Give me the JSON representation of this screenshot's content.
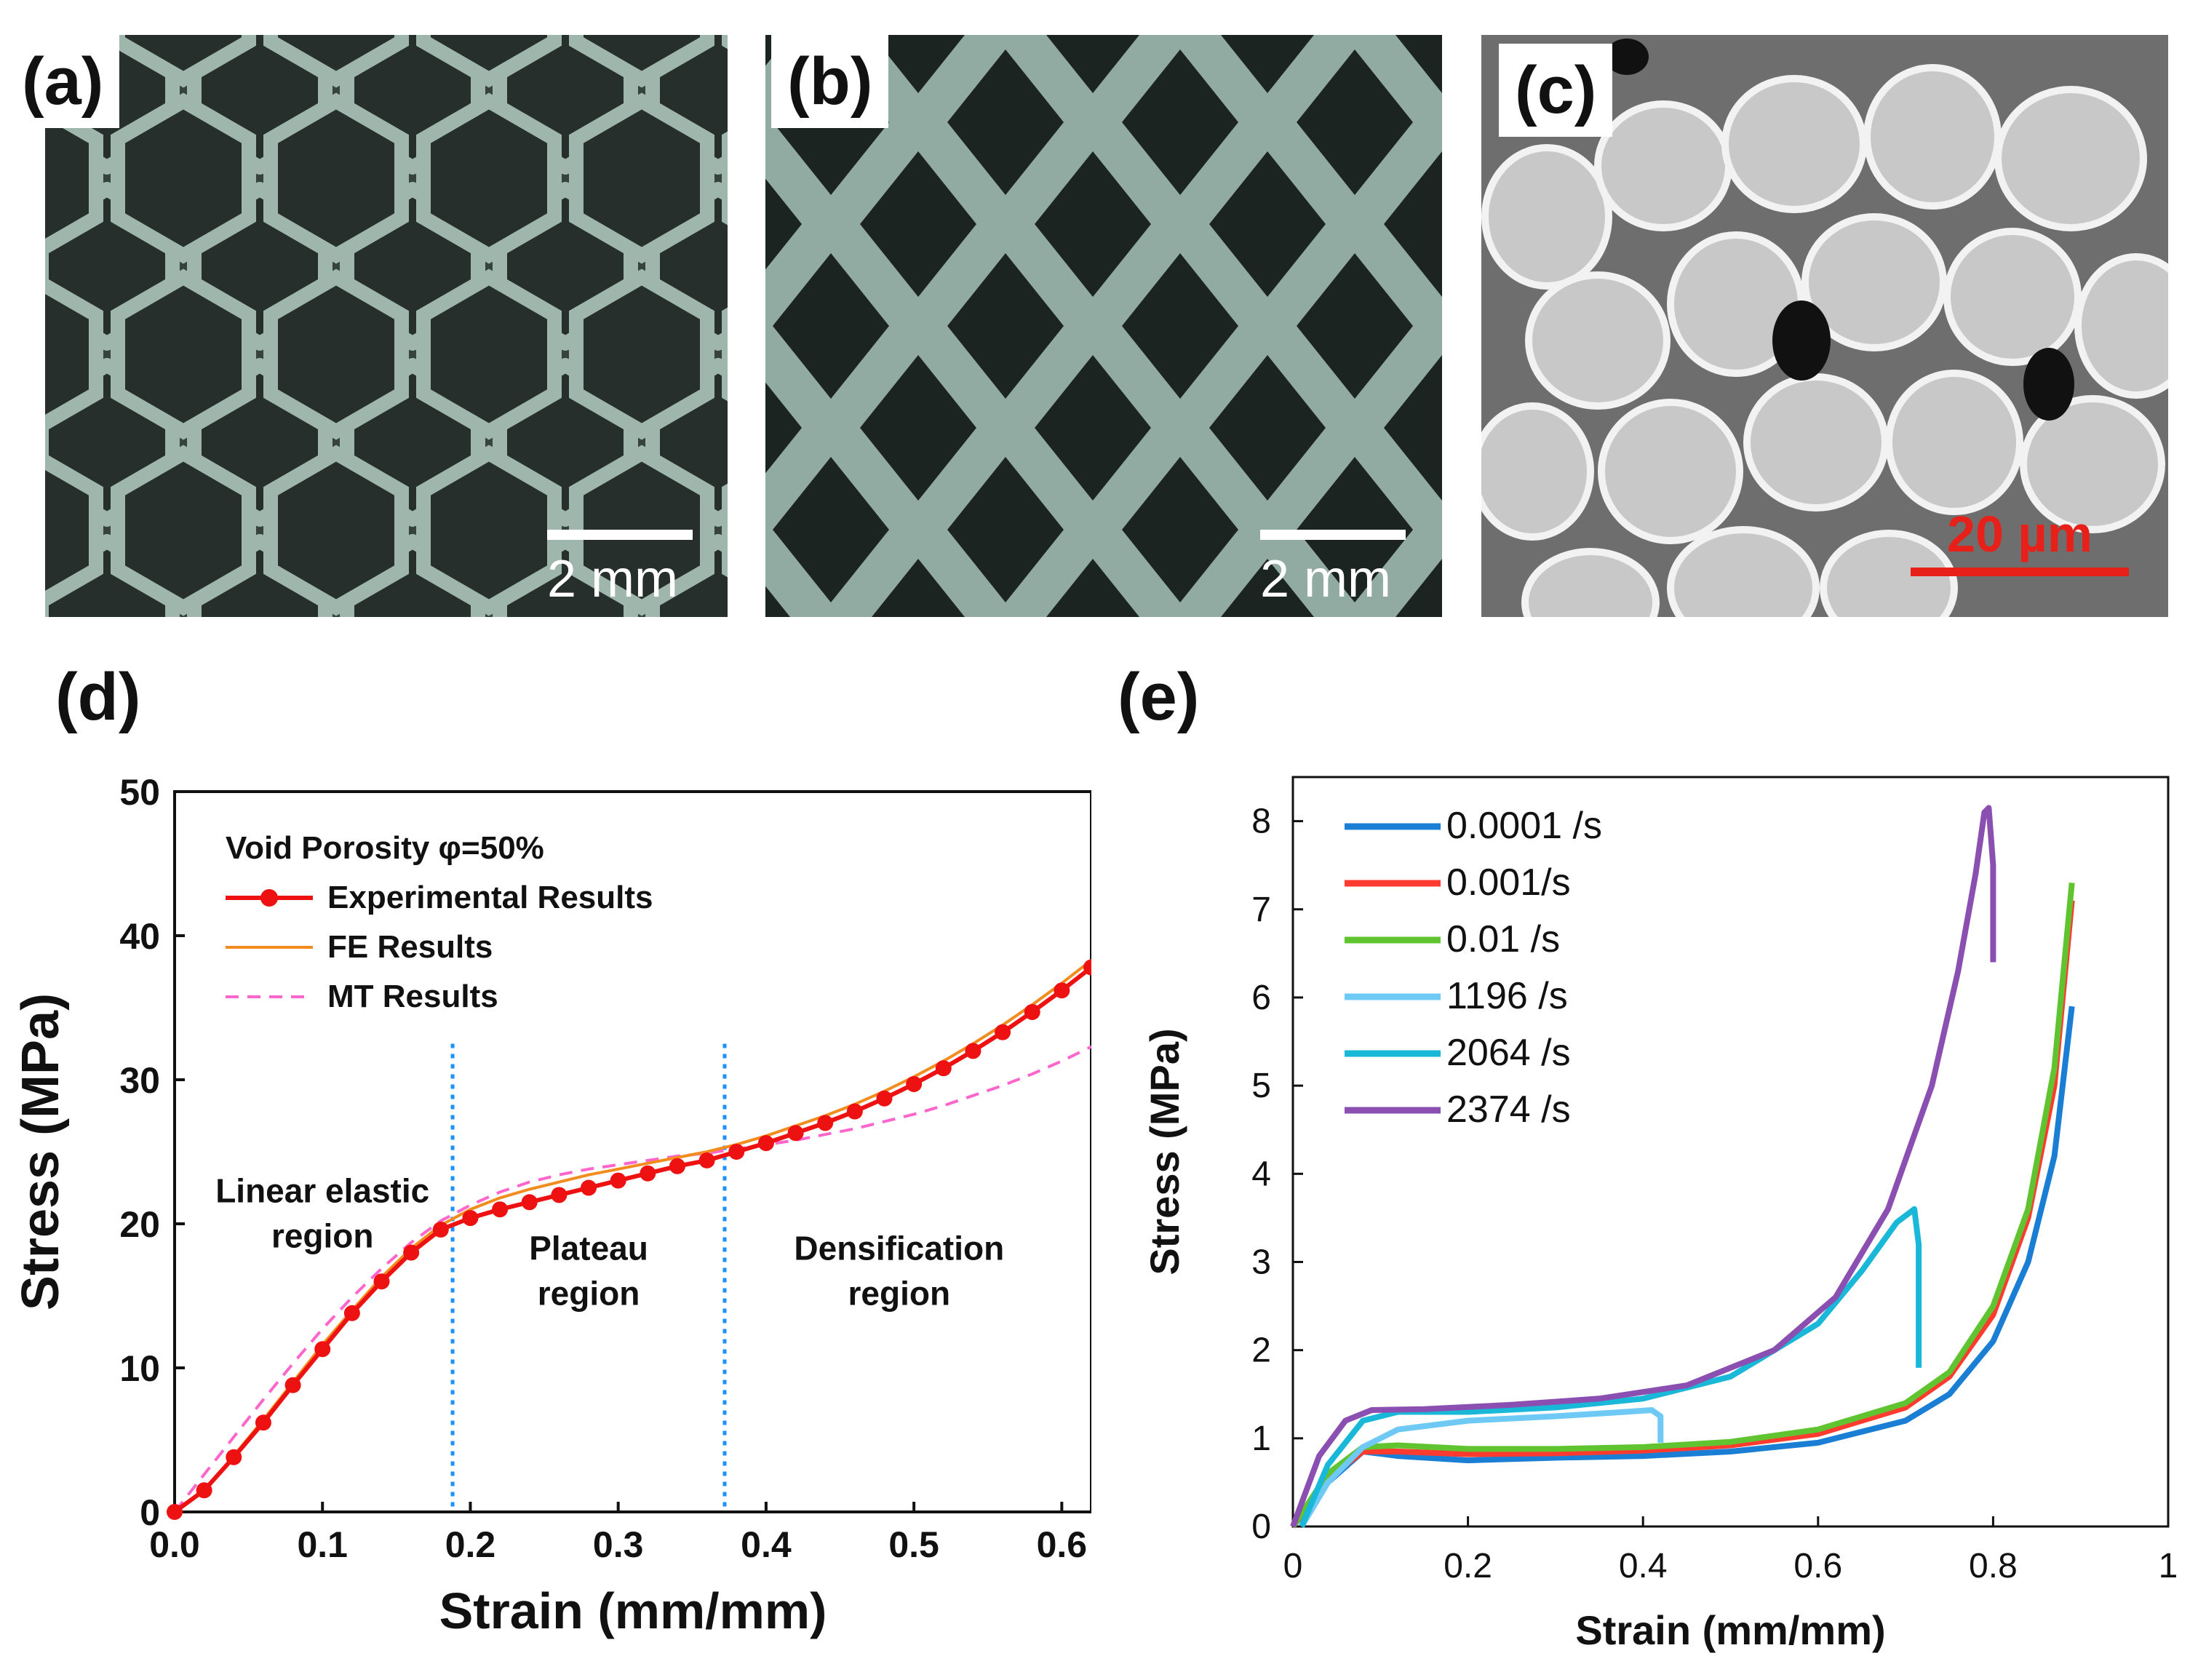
{
  "panels": {
    "a": {
      "label": "(a)",
      "scale_text": "2 mm"
    },
    "b": {
      "label": "(b)",
      "scale_text": "2 mm"
    },
    "c": {
      "label": "(c)",
      "scale_text": "20 µm"
    },
    "d": {
      "label": "(d)"
    },
    "e": {
      "label": "(e)"
    }
  },
  "colors": {
    "experimental": "#ee1111",
    "fe": "#f28c1e",
    "mt": "#ff66cc",
    "divider": "#1e90ff",
    "e_0001": "#1a7fd4",
    "e_001": "#ff3b30",
    "e_01": "#5fc430",
    "e_1196": "#6ec9f5",
    "e_2064": "#1ab8d8",
    "e_2374": "#8a4fb0",
    "scale_c": "#e8201a"
  },
  "chart_data": [
    {
      "id": "d",
      "type": "line",
      "xlabel": "Strain (mm/mm)",
      "ylabel": "Stress (MPa)",
      "xlim": [
        0.0,
        0.62
      ],
      "ylim": [
        0,
        50
      ],
      "xticks": [
        "0.0",
        "0.1",
        "0.2",
        "0.3",
        "0.4",
        "0.5",
        "0.6"
      ],
      "yticks": [
        "0",
        "10",
        "20",
        "30",
        "40",
        "50"
      ],
      "legend_title": "Void Porosity φ=50%",
      "legend": [
        "Experimental Results",
        "FE Results",
        "MT Results"
      ],
      "dividers_x": [
        0.188,
        0.372
      ],
      "regions": [
        {
          "line1": "Linear elastic",
          "line2": "region",
          "x": 0.1,
          "y": 21.5
        },
        {
          "line1": "Plateau",
          "line2": "region",
          "x": 0.28,
          "y": 17.5
        },
        {
          "line1": "Densification",
          "line2": "region",
          "x": 0.49,
          "y": 17.5
        }
      ],
      "series": [
        {
          "name": "Experimental Results",
          "x": [
            0.0,
            0.02,
            0.04,
            0.06,
            0.08,
            0.1,
            0.12,
            0.14,
            0.16,
            0.18,
            0.2,
            0.22,
            0.24,
            0.26,
            0.28,
            0.3,
            0.32,
            0.34,
            0.36,
            0.38,
            0.4,
            0.42,
            0.44,
            0.46,
            0.48,
            0.5,
            0.52,
            0.54,
            0.56,
            0.58,
            0.6,
            0.62
          ],
          "y": [
            0,
            1.5,
            3.8,
            6.2,
            8.8,
            11.3,
            13.8,
            16.0,
            18.0,
            19.6,
            20.4,
            21.0,
            21.5,
            22.0,
            22.5,
            23.0,
            23.5,
            24.0,
            24.4,
            25.0,
            25.6,
            26.3,
            27.0,
            27.8,
            28.7,
            29.7,
            30.8,
            32.0,
            33.3,
            34.7,
            36.2,
            37.8
          ]
        },
        {
          "name": "FE Results",
          "x": [
            0.0,
            0.02,
            0.04,
            0.06,
            0.08,
            0.1,
            0.12,
            0.14,
            0.16,
            0.18,
            0.2,
            0.22,
            0.24,
            0.26,
            0.28,
            0.3,
            0.32,
            0.34,
            0.36,
            0.38,
            0.4,
            0.42,
            0.44,
            0.46,
            0.48,
            0.5,
            0.52,
            0.54,
            0.56,
            0.58,
            0.6,
            0.62
          ],
          "y": [
            0,
            1.5,
            3.9,
            6.4,
            9.0,
            11.6,
            14.0,
            16.3,
            18.3,
            19.9,
            21.0,
            21.8,
            22.4,
            22.9,
            23.4,
            23.8,
            24.2,
            24.6,
            25.0,
            25.5,
            26.1,
            26.8,
            27.5,
            28.3,
            29.2,
            30.2,
            31.3,
            32.5,
            33.8,
            35.2,
            36.7,
            38.3
          ]
        },
        {
          "name": "MT Results",
          "x": [
            0.0,
            0.02,
            0.04,
            0.06,
            0.08,
            0.1,
            0.12,
            0.14,
            0.16,
            0.18,
            0.2,
            0.22,
            0.24,
            0.26,
            0.28,
            0.3,
            0.32,
            0.34,
            0.36,
            0.38,
            0.4,
            0.42,
            0.44,
            0.46,
            0.48,
            0.5,
            0.52,
            0.54,
            0.56,
            0.58,
            0.6,
            0.62
          ],
          "y": [
            0,
            2.6,
            5.2,
            7.8,
            10.3,
            12.7,
            14.9,
            16.9,
            18.7,
            20.2,
            21.3,
            22.2,
            22.9,
            23.4,
            23.8,
            24.1,
            24.4,
            24.7,
            24.9,
            25.2,
            25.5,
            25.8,
            26.2,
            26.6,
            27.1,
            27.6,
            28.2,
            28.9,
            29.6,
            30.4,
            31.3,
            32.3
          ]
        }
      ]
    },
    {
      "id": "e",
      "type": "line",
      "xlabel": "Strain (mm/mm)",
      "ylabel": "Stress (MPa)",
      "xlim": [
        0,
        1
      ],
      "ylim": [
        0,
        8.5
      ],
      "xticks": [
        "0",
        "0.2",
        "0.4",
        "0.6",
        "0.8",
        "1"
      ],
      "yticks": [
        "0",
        "1",
        "2",
        "3",
        "4",
        "5",
        "6",
        "7",
        "8"
      ],
      "legend": [
        "0.0001 /s",
        "0.001/s",
        "0.01 /s",
        "1196 /s",
        "2064 /s",
        "2374 /s"
      ],
      "series": [
        {
          "name": "0.0001 /s",
          "x": [
            0,
            0.04,
            0.08,
            0.12,
            0.2,
            0.3,
            0.4,
            0.5,
            0.6,
            0.7,
            0.75,
            0.8,
            0.84,
            0.87,
            0.89
          ],
          "y": [
            0,
            0.5,
            0.85,
            0.8,
            0.75,
            0.78,
            0.8,
            0.85,
            0.95,
            1.2,
            1.5,
            2.1,
            3.0,
            4.2,
            5.9
          ]
        },
        {
          "name": "0.001/s",
          "x": [
            0,
            0.04,
            0.08,
            0.12,
            0.2,
            0.3,
            0.4,
            0.5,
            0.6,
            0.7,
            0.75,
            0.8,
            0.84,
            0.87,
            0.89
          ],
          "y": [
            0,
            0.55,
            0.85,
            0.85,
            0.82,
            0.83,
            0.86,
            0.92,
            1.05,
            1.35,
            1.7,
            2.4,
            3.5,
            5.0,
            7.1
          ]
        },
        {
          "name": "0.01 /s",
          "x": [
            0,
            0.04,
            0.08,
            0.12,
            0.2,
            0.3,
            0.4,
            0.5,
            0.6,
            0.7,
            0.75,
            0.8,
            0.84,
            0.87,
            0.89
          ],
          "y": [
            0,
            0.6,
            0.9,
            0.92,
            0.88,
            0.88,
            0.9,
            0.96,
            1.1,
            1.4,
            1.75,
            2.5,
            3.6,
            5.2,
            7.3
          ]
        },
        {
          "name": "1196 /s",
          "x": [
            0.01,
            0.04,
            0.08,
            0.12,
            0.2,
            0.3,
            0.38,
            0.41,
            0.42,
            0.42
          ],
          "y": [
            0,
            0.5,
            0.9,
            1.1,
            1.2,
            1.25,
            1.3,
            1.32,
            1.25,
            0.95
          ]
        },
        {
          "name": "2064 /s",
          "x": [
            0.01,
            0.04,
            0.08,
            0.12,
            0.2,
            0.3,
            0.4,
            0.5,
            0.6,
            0.65,
            0.69,
            0.71,
            0.715,
            0.715
          ],
          "y": [
            0,
            0.7,
            1.2,
            1.3,
            1.3,
            1.35,
            1.45,
            1.7,
            2.3,
            2.9,
            3.45,
            3.6,
            3.2,
            1.8
          ]
        },
        {
          "name": "2374 /s",
          "x": [
            0.0,
            0.03,
            0.06,
            0.09,
            0.15,
            0.25,
            0.35,
            0.45,
            0.55,
            0.62,
            0.68,
            0.73,
            0.76,
            0.78,
            0.79,
            0.795,
            0.8,
            0.8
          ],
          "y": [
            0,
            0.8,
            1.2,
            1.32,
            1.33,
            1.38,
            1.45,
            1.6,
            2.0,
            2.6,
            3.6,
            5.0,
            6.3,
            7.4,
            8.1,
            8.15,
            7.5,
            6.4
          ]
        }
      ]
    }
  ]
}
